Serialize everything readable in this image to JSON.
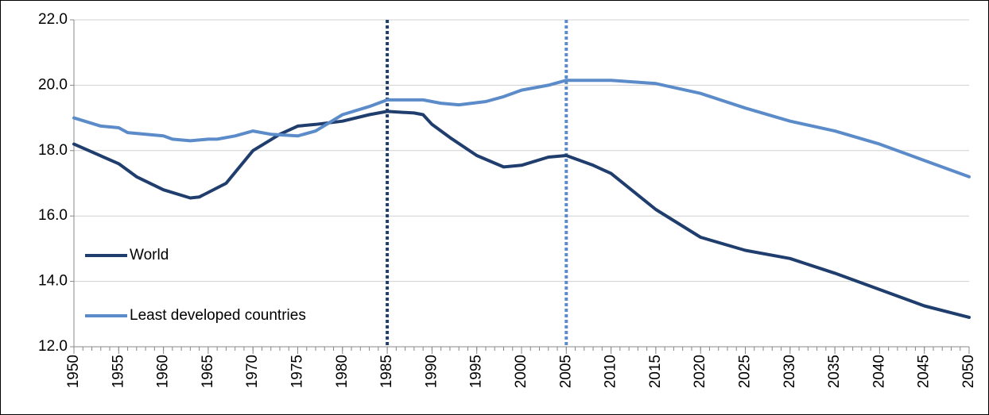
{
  "chart_data": {
    "type": "line",
    "xlim": [
      1950,
      2050
    ],
    "xticks": [
      1950,
      1955,
      1960,
      1965,
      1970,
      1975,
      1980,
      1985,
      1990,
      1995,
      2000,
      2005,
      2010,
      2015,
      2020,
      2025,
      2030,
      2035,
      2040,
      2045,
      2050
    ],
    "ylim": [
      12,
      22
    ],
    "yticks": [
      {
        "value": 12,
        "label": "12.0"
      },
      {
        "value": 14,
        "label": "14.0"
      },
      {
        "value": 16,
        "label": "16.0"
      },
      {
        "value": 18,
        "label": "18.0"
      },
      {
        "value": 20,
        "label": "20.0"
      },
      {
        "value": 22,
        "label": "22.0"
      }
    ],
    "grid": true,
    "legend": "lower-left",
    "vlines": [
      {
        "x": 1985,
        "color": "#1f3d6d"
      },
      {
        "x": 2005,
        "color": "#5b8bc9"
      }
    ],
    "series": [
      {
        "name": "World",
        "color": "#1f3d6d",
        "x": [
          1950,
          1955,
          1957,
          1960,
          1963,
          1964,
          1967,
          1970,
          1973,
          1975,
          1977,
          1980,
          1983,
          1985,
          1988,
          1989,
          1990,
          1992,
          1995,
          1998,
          2000,
          2003,
          2005,
          2008,
          2010,
          2015,
          2020,
          2025,
          2030,
          2035,
          2040,
          2045,
          2050
        ],
        "values": [
          18.2,
          17.6,
          17.2,
          16.8,
          16.55,
          16.58,
          17.0,
          18.0,
          18.5,
          18.75,
          18.8,
          18.9,
          19.1,
          19.2,
          19.15,
          19.1,
          18.8,
          18.4,
          17.85,
          17.5,
          17.55,
          17.8,
          17.85,
          17.55,
          17.3,
          16.2,
          15.35,
          14.95,
          14.7,
          14.25,
          13.75,
          13.25,
          12.9
        ]
      },
      {
        "name": "Least developed countries",
        "color": "#5b8bc9",
        "x": [
          1950,
          1953,
          1955,
          1956,
          1960,
          1961,
          1963,
          1965,
          1966,
          1968,
          1970,
          1972,
          1975,
          1977,
          1980,
          1983,
          1985,
          1987,
          1989,
          1991,
          1993,
          1996,
          1998,
          2000,
          2003,
          2005,
          2010,
          2015,
          2020,
          2025,
          2030,
          2035,
          2040,
          2045,
          2050
        ],
        "values": [
          19.0,
          18.75,
          18.7,
          18.55,
          18.45,
          18.35,
          18.3,
          18.35,
          18.35,
          18.45,
          18.6,
          18.5,
          18.45,
          18.6,
          19.1,
          19.35,
          19.55,
          19.55,
          19.55,
          19.45,
          19.4,
          19.5,
          19.65,
          19.85,
          20.0,
          20.15,
          20.15,
          20.05,
          19.75,
          19.3,
          18.9,
          18.6,
          18.2,
          17.7,
          17.2
        ]
      }
    ]
  }
}
